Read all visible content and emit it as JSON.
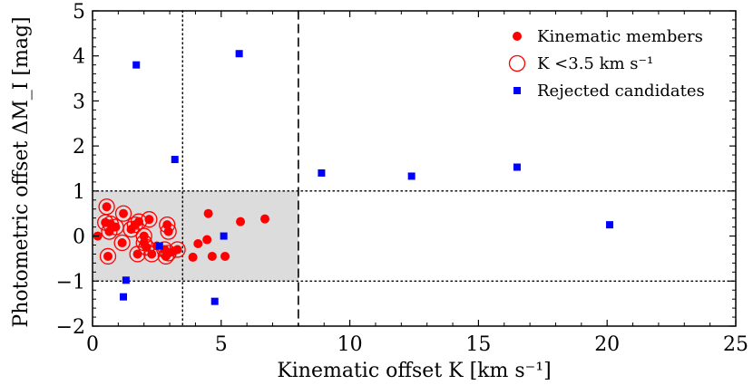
{
  "chart_data": {
    "type": "scatter",
    "xlabel": "Kinematic offset K [km s⁻¹]",
    "ylabel": "Photometric offset ΔM_I [mag]",
    "xlim": [
      0,
      25
    ],
    "ylim": [
      -2,
      5
    ],
    "xticks": [
      0,
      5,
      10,
      15,
      20,
      25
    ],
    "yticks": [
      -2,
      -1,
      0,
      1,
      2,
      3,
      4,
      5
    ],
    "x_tick_labels": [
      "0",
      "5",
      "10",
      "15",
      "20",
      "25"
    ],
    "y_tick_labels": [
      "−2",
      "−1",
      "0",
      "1",
      "2",
      "3",
      "4",
      "5"
    ],
    "legend_position": "top-right",
    "shaded_region": {
      "x": [
        0,
        8
      ],
      "y": [
        -1,
        1
      ],
      "color": "#dcdcdc"
    },
    "reference_lines": [
      {
        "orientation": "vertical",
        "value": 3.5,
        "style": "dotted"
      },
      {
        "orientation": "vertical",
        "value": 8,
        "style": "dashed"
      },
      {
        "orientation": "horizontal",
        "value": 1,
        "style": "dotted"
      },
      {
        "orientation": "horizontal",
        "value": -1,
        "style": "dotted"
      }
    ],
    "series": [
      {
        "name": "Kinematic members",
        "marker": "filled-circle",
        "color": "#ff0000",
        "points": [
          [
            0.2,
            0.0
          ],
          [
            0.55,
            0.65
          ],
          [
            0.5,
            0.3
          ],
          [
            0.65,
            0.1
          ],
          [
            0.7,
            0.27
          ],
          [
            0.6,
            -0.45
          ],
          [
            0.9,
            0.2
          ],
          [
            1.2,
            0.5
          ],
          [
            1.15,
            -0.15
          ],
          [
            1.5,
            0.15
          ],
          [
            1.65,
            0.25
          ],
          [
            1.8,
            0.32
          ],
          [
            1.75,
            -0.4
          ],
          [
            2.0,
            -0.15
          ],
          [
            2.0,
            0.0
          ],
          [
            2.1,
            -0.25
          ],
          [
            2.2,
            0.37
          ],
          [
            2.3,
            -0.4
          ],
          [
            2.5,
            -0.22
          ],
          [
            2.8,
            -0.3
          ],
          [
            2.85,
            -0.45
          ],
          [
            2.9,
            0.25
          ],
          [
            2.95,
            0.1
          ],
          [
            2.95,
            -0.38
          ],
          [
            3.1,
            -0.35
          ],
          [
            3.3,
            -0.3
          ],
          [
            3.9,
            -0.47
          ],
          [
            4.1,
            -0.17
          ],
          [
            4.45,
            -0.08
          ],
          [
            4.5,
            0.5
          ],
          [
            4.65,
            -0.45
          ],
          [
            5.15,
            -0.45
          ],
          [
            5.75,
            0.32
          ],
          [
            6.7,
            0.38
          ]
        ]
      },
      {
        "name": "K <3.5 km s⁻¹",
        "marker": "open-circle",
        "color": "#ff0000",
        "points": [
          [
            0.55,
            0.65
          ],
          [
            0.5,
            0.3
          ],
          [
            0.65,
            0.1
          ],
          [
            0.7,
            0.27
          ],
          [
            0.6,
            -0.45
          ],
          [
            0.9,
            0.2
          ],
          [
            1.2,
            0.5
          ],
          [
            1.15,
            -0.15
          ],
          [
            1.5,
            0.15
          ],
          [
            1.65,
            0.25
          ],
          [
            1.8,
            0.32
          ],
          [
            1.75,
            -0.4
          ],
          [
            2.0,
            -0.15
          ],
          [
            2.0,
            0.0
          ],
          [
            2.1,
            -0.25
          ],
          [
            2.2,
            0.37
          ],
          [
            2.3,
            -0.4
          ],
          [
            2.8,
            -0.3
          ],
          [
            2.85,
            -0.45
          ],
          [
            2.9,
            0.25
          ],
          [
            2.95,
            0.1
          ],
          [
            2.95,
            -0.38
          ],
          [
            3.3,
            -0.3
          ]
        ]
      },
      {
        "name": "Rejected candidates",
        "marker": "filled-square",
        "color": "#0000ff",
        "points": [
          [
            1.7,
            3.8
          ],
          [
            5.7,
            4.05
          ],
          [
            3.2,
            1.7
          ],
          [
            8.9,
            1.4
          ],
          [
            12.4,
            1.33
          ],
          [
            16.5,
            1.53
          ],
          [
            20.1,
            0.25
          ],
          [
            2.6,
            -0.22
          ],
          [
            5.1,
            0.0
          ],
          [
            1.3,
            -0.98
          ],
          [
            1.2,
            -1.35
          ],
          [
            4.75,
            -1.45
          ]
        ]
      }
    ]
  }
}
